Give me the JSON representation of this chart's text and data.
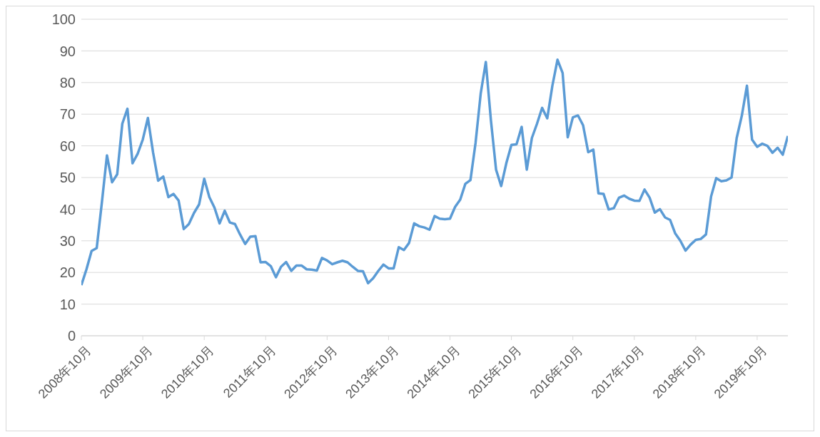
{
  "chart_data": {
    "type": "line",
    "x": [
      "2008-10",
      "2008-11",
      "2008-12",
      "2009-01",
      "2009-02",
      "2009-03",
      "2009-04",
      "2009-05",
      "2009-06",
      "2009-07",
      "2009-08",
      "2009-09",
      "2009-10",
      "2009-11",
      "2009-12",
      "2010-01",
      "2010-02",
      "2010-03",
      "2010-04",
      "2010-05",
      "2010-06",
      "2010-07",
      "2010-08",
      "2010-09",
      "2010-10",
      "2010-11",
      "2010-12",
      "2011-01",
      "2011-02",
      "2011-03",
      "2011-04",
      "2011-05",
      "2011-06",
      "2011-07",
      "2011-08",
      "2011-09",
      "2011-10",
      "2011-11",
      "2011-12",
      "2012-01",
      "2012-02",
      "2012-03",
      "2012-04",
      "2012-05",
      "2012-06",
      "2012-07",
      "2012-08",
      "2012-09",
      "2012-10",
      "2012-11",
      "2012-12",
      "2013-01",
      "2013-02",
      "2013-03",
      "2013-04",
      "2013-05",
      "2013-06",
      "2013-07",
      "2013-08",
      "2013-09",
      "2013-10",
      "2013-11",
      "2013-12",
      "2014-01",
      "2014-02",
      "2014-03",
      "2014-04",
      "2014-05",
      "2014-06",
      "2014-07",
      "2014-08",
      "2014-09",
      "2014-10",
      "2014-11",
      "2014-12",
      "2015-01",
      "2015-02",
      "2015-03",
      "2015-04",
      "2015-05",
      "2015-06",
      "2015-07",
      "2015-08",
      "2015-09",
      "2015-10",
      "2015-11",
      "2015-12",
      "2016-01",
      "2016-02",
      "2016-03",
      "2016-04",
      "2016-05",
      "2016-06",
      "2016-07",
      "2016-08",
      "2016-09",
      "2016-10",
      "2016-11",
      "2016-12",
      "2017-01",
      "2017-02",
      "2017-03",
      "2017-04",
      "2017-05",
      "2017-06",
      "2017-07",
      "2017-08",
      "2017-09",
      "2017-10",
      "2017-11",
      "2017-12",
      "2018-01",
      "2018-02",
      "2018-03",
      "2018-04",
      "2018-05",
      "2018-06",
      "2018-07",
      "2018-08",
      "2018-09",
      "2018-10",
      "2018-11",
      "2018-12",
      "2019-01",
      "2019-02",
      "2019-03",
      "2019-04",
      "2019-05",
      "2019-06",
      "2019-07",
      "2019-08",
      "2019-09",
      "2019-10",
      "2019-11",
      "2019-12",
      "2020-01",
      "2020-02",
      "2020-03",
      "2020-04"
    ],
    "series": [
      {
        "color": "#5b9bd5",
        "values": [
          16,
          21,
          26.8,
          27.7,
          42,
          57,
          48.5,
          51,
          67,
          71.7,
          54.5,
          57.5,
          62,
          68.8,
          58,
          49,
          50.3,
          43.8,
          44.8,
          42.7,
          33.7,
          35.3,
          38.8,
          41.5,
          49.6,
          43.8,
          40.5,
          35.5,
          39.5,
          35.8,
          35.3,
          32,
          29,
          31.3,
          31.5,
          23.2,
          23.3,
          22,
          18.5,
          21.8,
          23.3,
          20.5,
          22.2,
          22.2,
          21,
          20.9,
          20.6,
          24.6,
          23.8,
          22.6,
          23.2,
          23.7,
          23.2,
          21.8,
          20.5,
          20.4,
          16.6,
          18.2,
          20.5,
          22.5,
          21.3,
          21.3,
          28,
          27.1,
          29.3,
          35.5,
          34.6,
          34.2,
          33.5,
          37.8,
          37,
          36.8,
          37,
          40.7,
          43,
          48,
          49.2,
          61,
          76.5,
          86.5,
          68,
          52.5,
          47.3,
          54.5,
          60.3,
          60.5,
          66,
          52.5,
          62.5,
          67,
          72,
          68.7,
          79,
          87.2,
          83,
          62.7,
          69,
          69.6,
          66.5,
          58,
          58.8,
          45,
          44.8,
          39.9,
          40.3,
          43.6,
          44.3,
          43.3,
          42.7,
          42.6,
          46.2,
          43.6,
          38.9,
          40,
          37.4,
          36.6,
          32.3,
          30,
          26.9,
          28.8,
          30.3,
          30.6,
          32,
          44,
          49.8,
          48.8,
          49.1,
          50,
          62.5,
          69.5,
          79,
          62,
          59.7,
          60.7,
          60,
          57.8,
          59.4,
          57.2,
          63.1
        ]
      }
    ],
    "xlim": [
      "2008-10",
      "2020-04"
    ],
    "xticks": [
      {
        "value": "2008-10",
        "label": "2008年10月"
      },
      {
        "value": "2009-10",
        "label": "2009年10月"
      },
      {
        "value": "2010-10",
        "label": "2010年10月"
      },
      {
        "value": "2011-10",
        "label": "2011年10月"
      },
      {
        "value": "2012-10",
        "label": "2012年10月"
      },
      {
        "value": "2013-10",
        "label": "2013年10月"
      },
      {
        "value": "2014-10",
        "label": "2014年10月"
      },
      {
        "value": "2015-10",
        "label": "2015年10月"
      },
      {
        "value": "2016-10",
        "label": "2016年10月"
      },
      {
        "value": "2017-10",
        "label": "2017年10月"
      },
      {
        "value": "2018-10",
        "label": "2018年10月"
      },
      {
        "value": "2019-10",
        "label": "2019年10月"
      }
    ],
    "ylim": [
      0,
      100
    ],
    "yticks": [
      0,
      10,
      20,
      30,
      40,
      50,
      60,
      70,
      80,
      90,
      100
    ],
    "grid": "y",
    "legend": false,
    "marker": "none",
    "line_style": "solid"
  }
}
